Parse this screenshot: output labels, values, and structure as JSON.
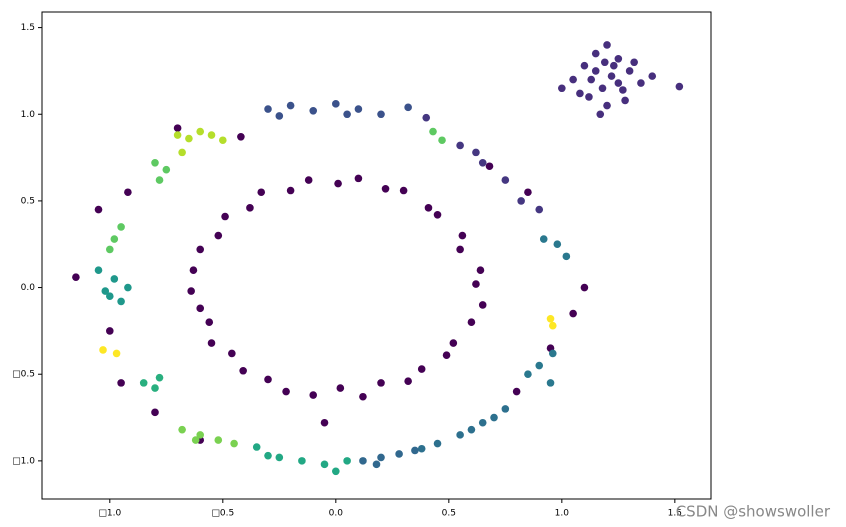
{
  "chart_data": {
    "type": "scatter",
    "xlim": [
      -1.3,
      1.66
    ],
    "ylim": [
      -1.22,
      1.59
    ],
    "xticks": [
      {
        "value": -1.0,
        "label": "□1.0"
      },
      {
        "value": -0.5,
        "label": "□0.5"
      },
      {
        "value": 0,
        "label": "0.0"
      },
      0.5,
      {
        "value": 1,
        "label": "1.0"
      },
      1.5
    ],
    "yticks": [
      {
        "value": -1.0,
        "label": "□1.0"
      },
      {
        "value": -0.5,
        "label": "□0.5"
      },
      {
        "value": 0,
        "label": "0.0"
      },
      0.5,
      {
        "value": 1,
        "label": "1.0"
      },
      1.5
    ],
    "watermark": "CSDN @showswoller",
    "series": [
      {
        "color": "#440154",
        "x": [
          0.62,
          0.64,
          0.55,
          0.56,
          0.45,
          0.41,
          0.3,
          0.22,
          0.1,
          0.01,
          -0.12,
          -0.2,
          -0.33,
          -0.38,
          -0.49,
          -0.52,
          -0.6,
          -0.63,
          -0.64,
          -0.6,
          -0.56,
          -0.55,
          -0.46,
          -0.41,
          -0.3,
          -0.22,
          -0.1,
          0.02,
          0.12,
          0.2,
          0.32,
          0.38,
          0.49,
          0.52,
          0.6,
          0.65
        ],
        "y": [
          0.02,
          0.1,
          0.22,
          0.3,
          0.42,
          0.46,
          0.56,
          0.57,
          0.63,
          0.6,
          0.62,
          0.56,
          0.55,
          0.46,
          0.41,
          0.3,
          0.22,
          0.1,
          -0.02,
          -0.12,
          -0.2,
          -0.32,
          -0.38,
          -0.48,
          -0.53,
          -0.6,
          -0.62,
          -0.58,
          -0.63,
          -0.55,
          -0.54,
          -0.47,
          -0.39,
          -0.32,
          -0.2,
          -0.1
        ]
      },
      {
        "color": "#440154",
        "x": [
          -1.15,
          -1.05,
          -0.92,
          -0.7,
          -0.42,
          0.68,
          0.85,
          1.1,
          1.05,
          0.95,
          -1.0,
          -0.95,
          -0.8,
          -0.6,
          0.8,
          -0.05
        ],
        "y": [
          0.06,
          0.45,
          0.55,
          0.92,
          0.87,
          0.7,
          0.55,
          0.0,
          -0.15,
          -0.35,
          -0.25,
          -0.55,
          -0.72,
          -0.88,
          -0.6,
          -0.78
        ]
      },
      {
        "color": "#472f7d",
        "x": [
          1.05,
          1.1,
          1.15,
          1.2,
          1.25,
          1.3,
          1.35,
          1.12,
          1.18,
          1.22,
          1.28,
          1.08,
          1.15,
          1.25,
          1.32,
          1.2,
          1.17,
          1.23,
          1.0,
          1.4,
          1.13,
          1.27,
          1.19,
          1.52
        ],
        "y": [
          1.2,
          1.28,
          1.35,
          1.4,
          1.32,
          1.25,
          1.18,
          1.1,
          1.15,
          1.22,
          1.08,
          1.12,
          1.25,
          1.18,
          1.3,
          1.05,
          1.0,
          1.28,
          1.15,
          1.22,
          1.2,
          1.14,
          1.3,
          1.16
        ]
      },
      {
        "color": "#3b528b",
        "x": [
          -0.3,
          -0.2,
          -0.1,
          0.0,
          0.1,
          0.2,
          0.32,
          -0.25,
          0.05
        ],
        "y": [
          1.03,
          1.05,
          1.02,
          1.06,
          1.03,
          1.0,
          1.04,
          0.99,
          1.0
        ]
      },
      {
        "color": "#453781",
        "x": [
          0.4,
          0.55,
          0.65,
          0.75,
          0.82,
          0.9,
          0.62
        ],
        "y": [
          0.98,
          0.82,
          0.72,
          0.62,
          0.5,
          0.45,
          0.78
        ]
      },
      {
        "color": "#2a788e",
        "x": [
          0.92,
          0.98,
          1.02,
          0.96,
          0.9,
          0.85,
          0.95
        ],
        "y": [
          0.28,
          0.25,
          0.18,
          -0.38,
          -0.45,
          -0.5,
          -0.55
        ]
      },
      {
        "color": "#2d708e",
        "x": [
          0.75,
          0.65,
          0.55,
          0.45,
          0.7,
          0.6,
          0.38
        ],
        "y": [
          -0.7,
          -0.78,
          -0.85,
          -0.9,
          -0.75,
          -0.82,
          -0.93
        ]
      },
      {
        "color": "#31688e",
        "x": [
          0.12,
          0.2,
          0.28,
          0.35,
          0.18
        ],
        "y": [
          -1.0,
          -0.98,
          -0.96,
          -0.94,
          -1.02
        ]
      },
      {
        "color": "#22a884",
        "x": [
          -0.35,
          -0.25,
          -0.15,
          -0.05,
          0.05,
          -0.3,
          0.0
        ],
        "y": [
          -0.92,
          -0.98,
          -1.0,
          -1.02,
          -1.0,
          -0.97,
          -1.06
        ]
      },
      {
        "color": "#7ad151",
        "x": [
          -0.68,
          -0.6,
          -0.52,
          -0.45,
          -0.62
        ],
        "y": [
          -0.82,
          -0.85,
          -0.88,
          -0.9,
          -0.88
        ]
      },
      {
        "color": "#29af7f",
        "x": [
          -0.85,
          -0.8,
          -0.78
        ],
        "y": [
          -0.55,
          -0.58,
          -0.52
        ]
      },
      {
        "color": "#1f988b",
        "x": [
          -1.05,
          -0.98,
          -0.92,
          -1.0,
          -0.95,
          -1.02
        ],
        "y": [
          0.1,
          0.05,
          0.0,
          -0.05,
          -0.08,
          -0.02
        ]
      },
      {
        "color": "#5ec962",
        "x": [
          -1.0,
          -0.98,
          -0.95,
          -0.78,
          -0.75,
          -0.8,
          0.43,
          0.47
        ],
        "y": [
          0.22,
          0.28,
          0.35,
          0.62,
          0.68,
          0.72,
          0.9,
          0.85
        ]
      },
      {
        "color": "#b5de2b",
        "x": [
          -0.7,
          -0.65,
          -0.6,
          -0.55,
          -0.5,
          -0.68
        ],
        "y": [
          0.88,
          0.86,
          0.9,
          0.88,
          0.85,
          0.78
        ]
      },
      {
        "color": "#fde725",
        "x": [
          -1.03,
          -0.97,
          0.95,
          0.96
        ],
        "y": [
          -0.36,
          -0.38,
          -0.18,
          -0.22
        ]
      }
    ]
  }
}
